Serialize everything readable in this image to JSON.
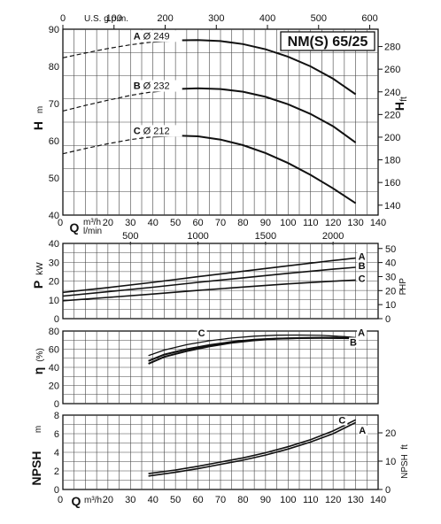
{
  "colors": {
    "grid": "#444444",
    "curve": "#111111",
    "background": "#ffffff"
  },
  "chart_data": {
    "type": "line",
    "title": "NM(S) 65/25",
    "x": {
      "symbol": "Q",
      "unit_primary": "m³/h",
      "unit_secondary": "l/min",
      "range": [
        0,
        140
      ],
      "ticks": [
        0,
        10,
        20,
        30,
        40,
        50,
        60,
        70,
        80,
        90,
        100,
        110,
        120,
        130,
        140
      ],
      "lmin_ticks": [
        500,
        1000,
        1500,
        2000
      ],
      "gpm_unit": "U.S. g.p.m.",
      "gpm_ticks": [
        0,
        100,
        200,
        300,
        400,
        500,
        600
      ]
    },
    "panels": {
      "head": {
        "ylabel": "H",
        "yunit": "m",
        "yrange": [
          40,
          90
        ],
        "yticks": [
          40,
          50,
          60,
          70,
          80,
          90
        ],
        "y2unit": "ft",
        "y2ticks": [
          140,
          160,
          180,
          200,
          220,
          240,
          260,
          280
        ],
        "series": [
          {
            "name": "A",
            "label": "Ø 249",
            "dashed": [
              [
                0,
                82.3
              ],
              [
                10,
                83.6
              ],
              [
                20,
                84.8
              ],
              [
                30,
                85.8
              ],
              [
                40,
                86.6
              ]
            ],
            "solid": [
              [
                40,
                86.6
              ],
              [
                50,
                87.0
              ],
              [
                60,
                87.1
              ],
              [
                70,
                86.8
              ],
              [
                80,
                86.0
              ],
              [
                90,
                84.6
              ],
              [
                100,
                82.6
              ],
              [
                110,
                80.0
              ],
              [
                120,
                76.7
              ],
              [
                130,
                72.5
              ]
            ]
          },
          {
            "name": "B",
            "label": "Ø 232",
            "dashed": [
              [
                0,
                68.0
              ],
              [
                10,
                69.5
              ],
              [
                20,
                70.9
              ],
              [
                30,
                72.2
              ],
              [
                40,
                73.2
              ]
            ],
            "solid": [
              [
                40,
                73.2
              ],
              [
                50,
                73.9
              ],
              [
                60,
                74.1
              ],
              [
                70,
                73.9
              ],
              [
                80,
                73.2
              ],
              [
                90,
                71.8
              ],
              [
                100,
                69.8
              ],
              [
                110,
                67.2
              ],
              [
                120,
                63.9
              ],
              [
                130,
                59.5
              ]
            ]
          },
          {
            "name": "C",
            "label": "Ø 212",
            "dashed": [
              [
                0,
                56.5
              ],
              [
                10,
                57.9
              ],
              [
                20,
                59.2
              ],
              [
                30,
                60.3
              ],
              [
                40,
                61.1
              ]
            ],
            "solid": [
              [
                40,
                61.1
              ],
              [
                50,
                61.4
              ],
              [
                60,
                61.2
              ],
              [
                70,
                60.3
              ],
              [
                80,
                58.8
              ],
              [
                90,
                56.7
              ],
              [
                100,
                54.0
              ],
              [
                110,
                50.8
              ],
              [
                120,
                47.2
              ],
              [
                130,
                43.2
              ]
            ]
          }
        ]
      },
      "power": {
        "ylabel": "P",
        "yunit": "kW",
        "yrange": [
          0,
          40
        ],
        "yticks": [
          0,
          10,
          20,
          30,
          40
        ],
        "y2unit": "HP",
        "y2ticks": [
          0,
          10,
          20,
          30,
          40,
          50
        ],
        "series": [
          {
            "name": "A",
            "points": [
              [
                0,
                14
              ],
              [
                20,
                16.5
              ],
              [
                40,
                19.3
              ],
              [
                60,
                22.3
              ],
              [
                80,
                25.2
              ],
              [
                100,
                28.1
              ],
              [
                120,
                30.9
              ],
              [
                130,
                32.2
              ]
            ]
          },
          {
            "name": "B",
            "points": [
              [
                0,
                12
              ],
              [
                20,
                14.3
              ],
              [
                40,
                16.7
              ],
              [
                60,
                19.3
              ],
              [
                80,
                21.7
              ],
              [
                100,
                24.1
              ],
              [
                120,
                26.3
              ],
              [
                130,
                27.3
              ]
            ]
          },
          {
            "name": "C",
            "points": [
              [
                0,
                9.5
              ],
              [
                20,
                11.3
              ],
              [
                40,
                13.1
              ],
              [
                60,
                15.0
              ],
              [
                80,
                16.8
              ],
              [
                100,
                18.5
              ],
              [
                120,
                19.9
              ],
              [
                130,
                20.5
              ]
            ]
          }
        ]
      },
      "efficiency": {
        "ylabel": "η",
        "yunit": "(%)",
        "yrange": [
          0,
          80
        ],
        "yticks": [
          0,
          20,
          40,
          60,
          80
        ],
        "series": [
          {
            "name": "A",
            "points": [
              [
                38,
                47
              ],
              [
                45,
                54
              ],
              [
                55,
                60
              ],
              [
                65,
                64.5
              ],
              [
                75,
                68
              ],
              [
                85,
                70.5
              ],
              [
                95,
                71.7
              ],
              [
                105,
                72.2
              ],
              [
                115,
                72.4
              ],
              [
                125,
                72.2
              ],
              [
                130,
                71.8
              ]
            ]
          },
          {
            "name": "B",
            "points": [
              [
                38,
                44
              ],
              [
                45,
                51.5
              ],
              [
                55,
                58
              ],
              [
                65,
                63
              ],
              [
                75,
                67
              ],
              [
                85,
                69.8
              ],
              [
                95,
                71.4
              ],
              [
                105,
                72.3
              ],
              [
                115,
                72.7
              ],
              [
                125,
                72.5
              ],
              [
                130,
                72.0
              ]
            ]
          },
          {
            "name": "C",
            "points": [
              [
                38,
                53
              ],
              [
                45,
                59
              ],
              [
                55,
                65
              ],
              [
                65,
                69.3
              ],
              [
                75,
                72.3
              ],
              [
                85,
                74.3
              ],
              [
                95,
                75.4
              ],
              [
                105,
                75.6
              ],
              [
                115,
                75.2
              ],
              [
                125,
                73.9
              ],
              [
                130,
                72.8
              ]
            ]
          }
        ]
      },
      "npsh": {
        "ylabel": "NPSH",
        "yunit": "m",
        "yrange": [
          0,
          8
        ],
        "yticks": [
          0,
          2,
          4,
          6,
          8
        ],
        "y2unit": "ft",
        "y2ticks": [
          0,
          10,
          20
        ],
        "series": [
          {
            "name": "A",
            "points": [
              [
                38,
                1.45
              ],
              [
                50,
                1.85
              ],
              [
                60,
                2.25
              ],
              [
                70,
                2.7
              ],
              [
                80,
                3.15
              ],
              [
                90,
                3.7
              ],
              [
                100,
                4.35
              ],
              [
                110,
                5.1
              ],
              [
                120,
                6.0
              ],
              [
                130,
                7.2
              ]
            ]
          },
          {
            "name": "C",
            "points": [
              [
                38,
                1.7
              ],
              [
                50,
                2.1
              ],
              [
                60,
                2.5
              ],
              [
                70,
                2.95
              ],
              [
                80,
                3.4
              ],
              [
                90,
                3.95
              ],
              [
                100,
                4.6
              ],
              [
                110,
                5.35
              ],
              [
                120,
                6.3
              ],
              [
                130,
                7.5
              ]
            ]
          }
        ]
      }
    }
  }
}
